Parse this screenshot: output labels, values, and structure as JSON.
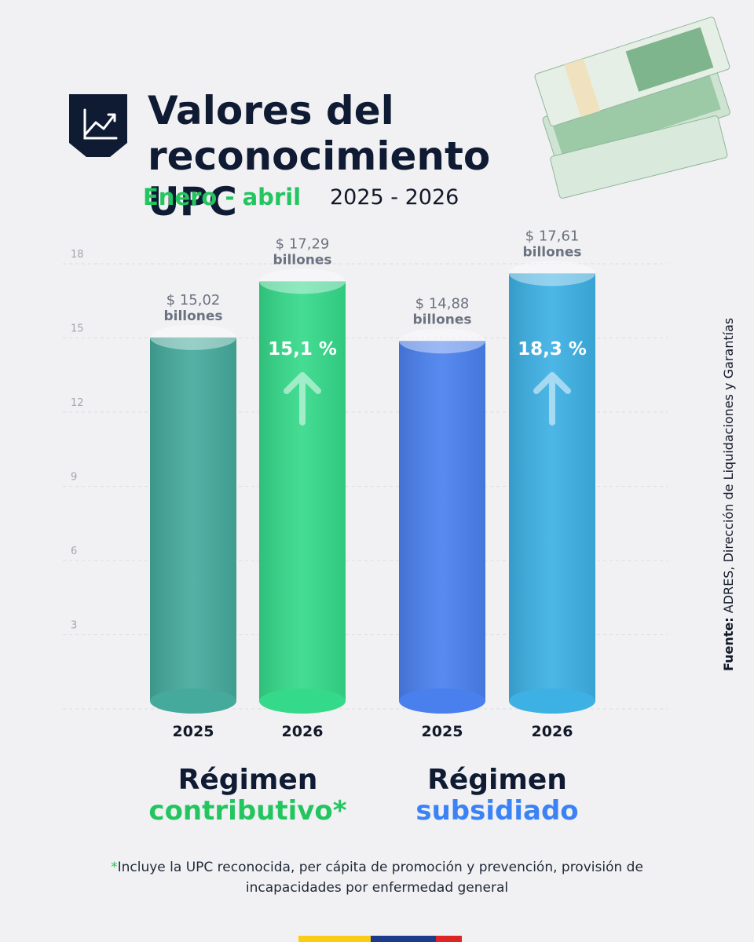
{
  "chart_data": {
    "type": "bar",
    "title": "Valores del reconocimiento UPC",
    "subtitle": "Enero - abril",
    "period": "2025 - 2026",
    "categories": [
      "2025",
      "2026",
      "2025",
      "2026"
    ],
    "values": [
      15.02,
      17.29,
      14.88,
      17.61
    ],
    "value_labels": [
      "$ 15,02",
      "$ 17,29",
      "$ 14,88",
      "$ 17,61"
    ],
    "unit": "billones",
    "colors": [
      "#45aa9c",
      "#35d98a",
      "#4a80ee",
      "#3db0e4"
    ],
    "groups": [
      {
        "title": "Régimen",
        "subtitle": "contributivo*",
        "color": "#22c55e",
        "change": "15,1 %"
      },
      {
        "title": "Régimen",
        "subtitle": "subsidiado",
        "color": "#3b82f6",
        "change": "18,3 %"
      }
    ],
    "ylim": [
      0,
      18
    ],
    "yticks": [
      3,
      6,
      9,
      12,
      15,
      18
    ],
    "grid": true,
    "source_label": "Fuente:",
    "source": "ADRES, Dirección de Liquidaciones y Garantías",
    "footnote_mark": "*",
    "footnote": "Incluye la UPC reconocida, per cápita de promoción y prevención, provisión de incapacidades por enfermedad general"
  }
}
